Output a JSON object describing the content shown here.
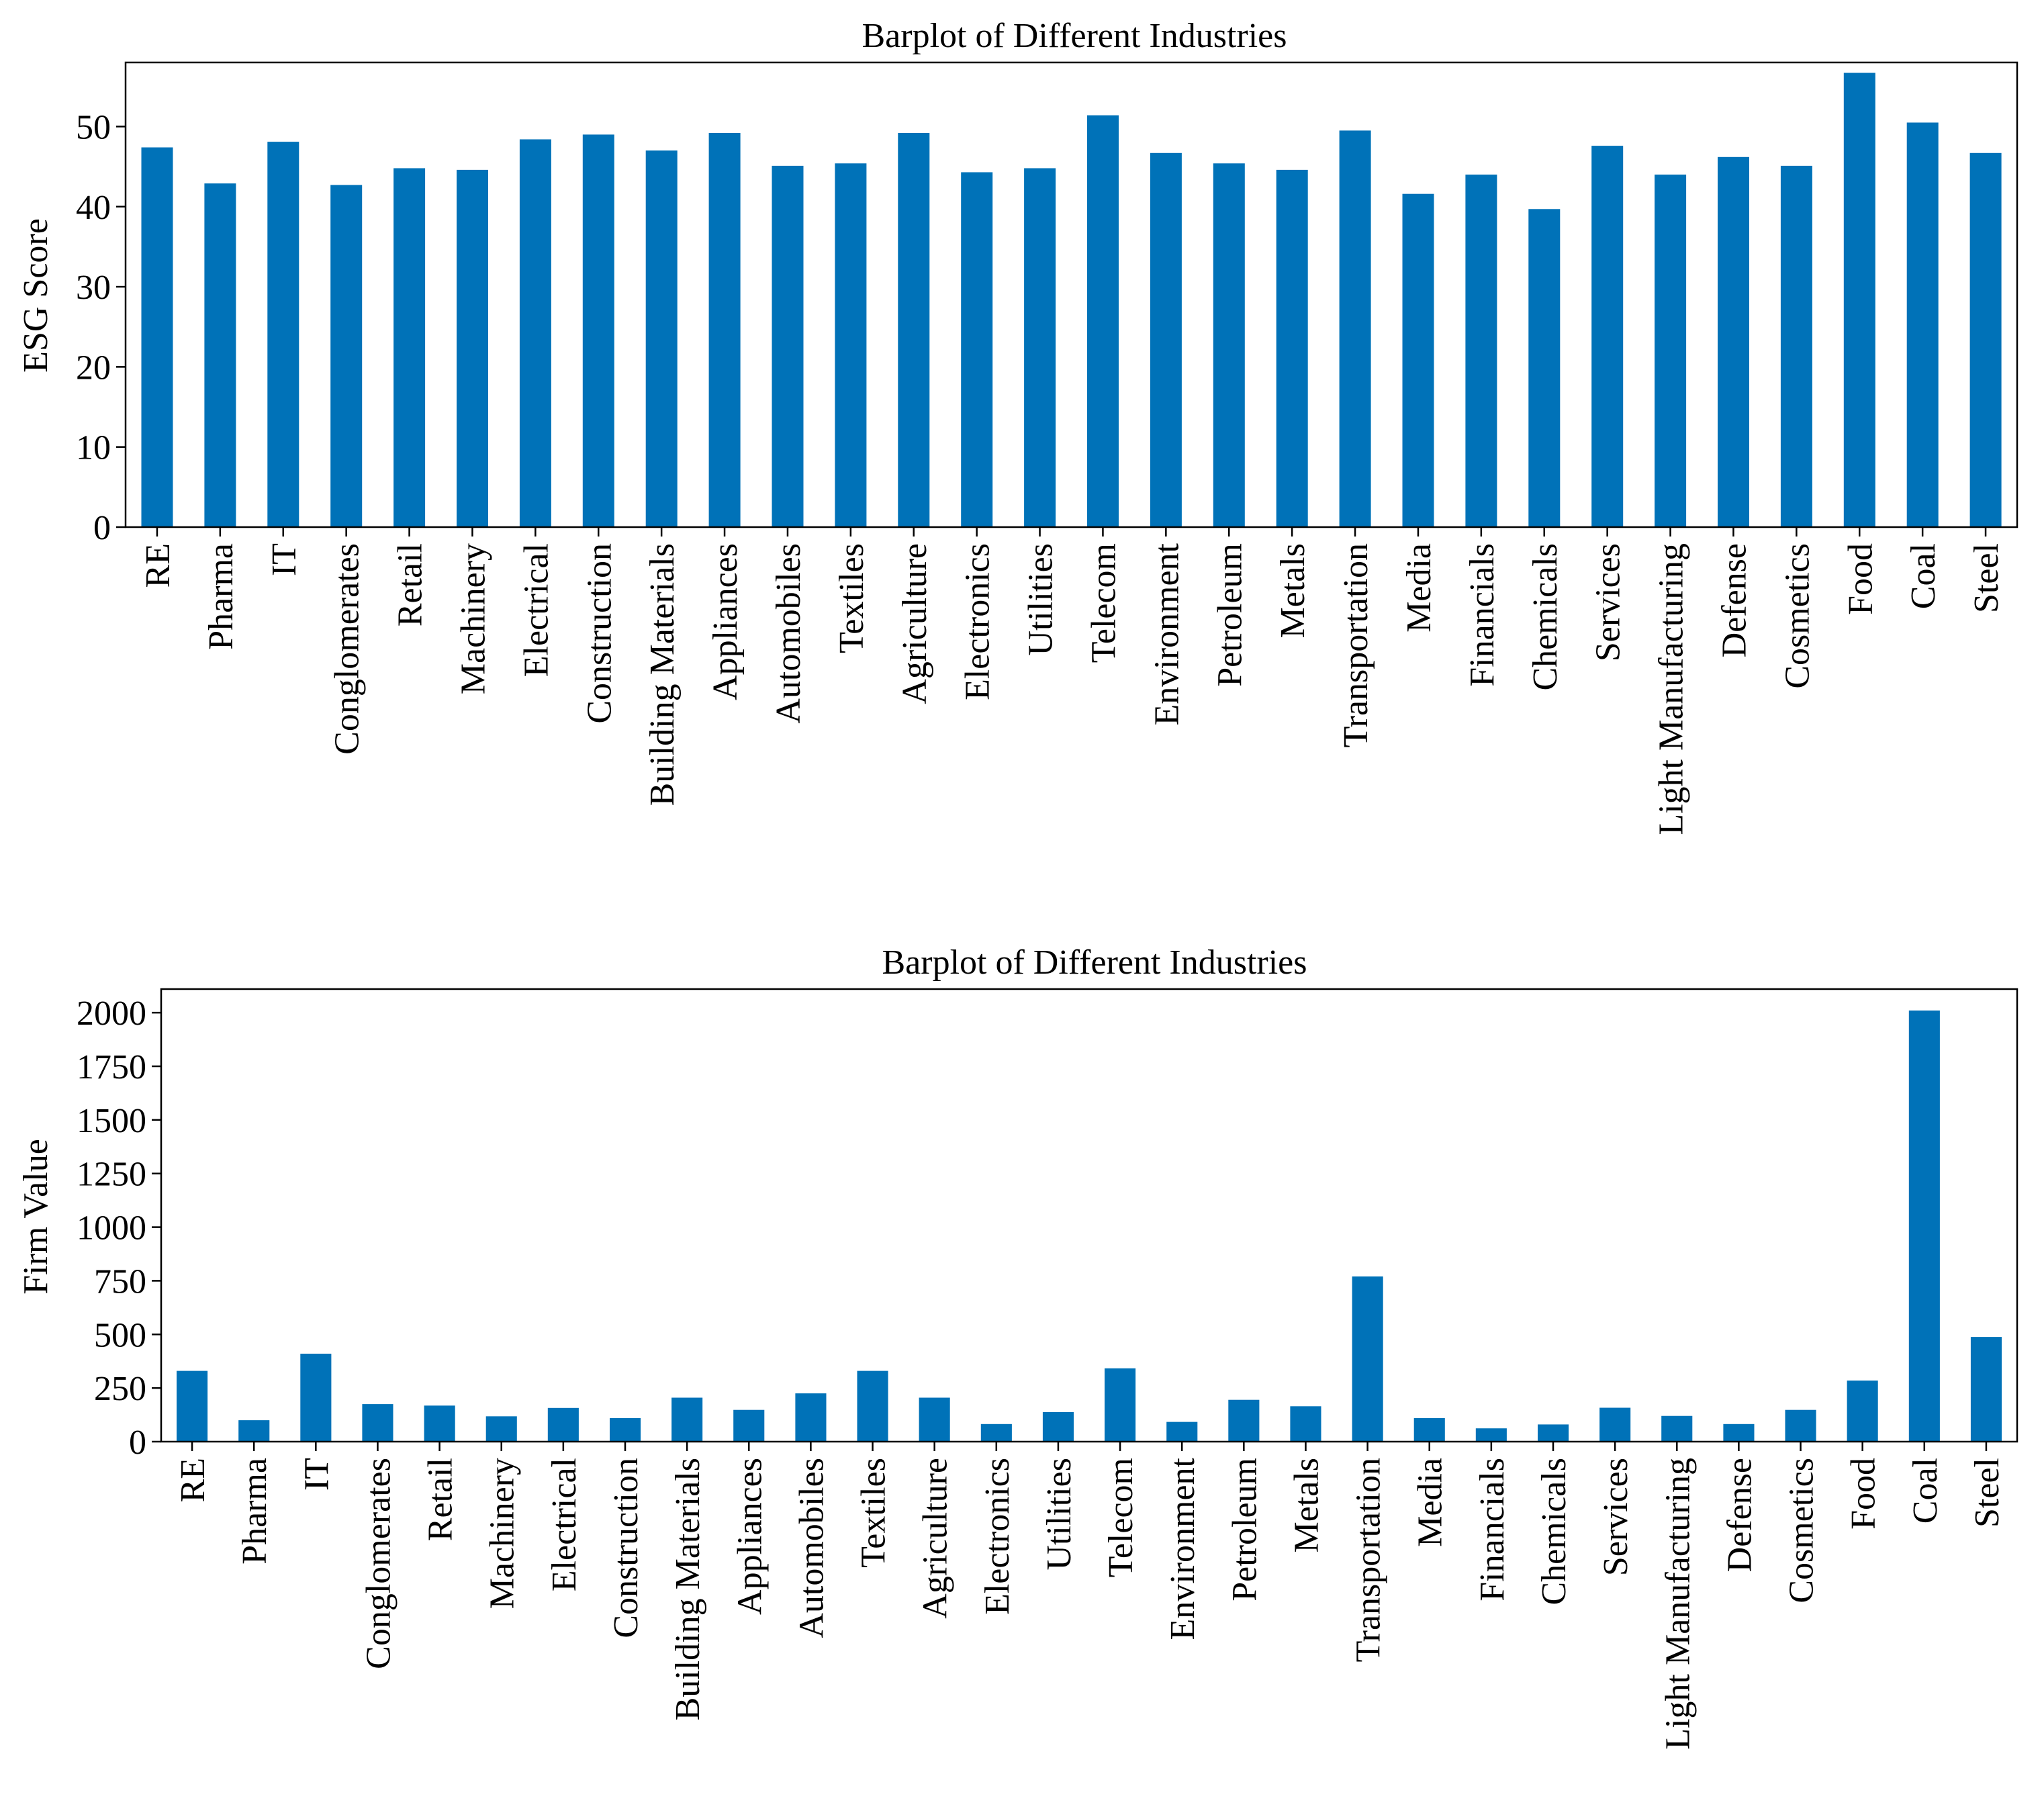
{
  "colors": {
    "bar": "#0072b8",
    "axis": "#000000",
    "background": "#ffffff"
  },
  "chart_data": [
    {
      "type": "bar",
      "title": "Barplot of Different Industries",
      "xlabel": "",
      "ylabel": "ESG Score",
      "ylim": [
        0,
        58
      ],
      "yticks": [
        0,
        10,
        20,
        30,
        40,
        50
      ],
      "legend": "none",
      "grid": false,
      "categories": [
        "RE",
        "Pharma",
        "IT",
        "Conglomerates",
        "Retail",
        "Machinery",
        "Electrical",
        "Construction",
        "Building Materials",
        "Appliances",
        "Automobiles",
        "Textiles",
        "Agriculture",
        "Electronics",
        "Utilities",
        "Telecom",
        "Environment",
        "Petroleum",
        "Metals",
        "Transportation",
        "Media",
        "Financials",
        "Chemicals",
        "Services",
        "Light Manufacturing",
        "Defense",
        "Cosmetics",
        "Food",
        "Coal",
        "Steel"
      ],
      "values": [
        47.4,
        42.9,
        48.1,
        42.7,
        44.8,
        44.6,
        48.4,
        49.0,
        47.0,
        49.2,
        45.1,
        45.4,
        49.2,
        44.3,
        44.8,
        51.4,
        46.7,
        45.4,
        44.6,
        49.5,
        41.6,
        44.0,
        39.7,
        47.6,
        44.0,
        46.2,
        45.1,
        56.7,
        50.5,
        46.7
      ]
    },
    {
      "type": "bar",
      "title": "Barplot of Different Industries",
      "xlabel": "",
      "ylabel": "Firm Value",
      "ylim": [
        0,
        2110
      ],
      "yticks": [
        0,
        250,
        500,
        750,
        1000,
        1250,
        1500,
        1750,
        2000
      ],
      "legend": "none",
      "grid": false,
      "categories": [
        "RE",
        "Pharma",
        "IT",
        "Conglomerates",
        "Retail",
        "Machinery",
        "Electrical",
        "Construction",
        "Building Materials",
        "Appliances",
        "Automobiles",
        "Textiles",
        "Agriculture",
        "Electronics",
        "Utilities",
        "Telecom",
        "Environment",
        "Petroleum",
        "Metals",
        "Transportation",
        "Media",
        "Financials",
        "Chemicals",
        "Services",
        "Light Manufacturing",
        "Defense",
        "Cosmetics",
        "Food",
        "Coal",
        "Steel"
      ],
      "values": [
        330,
        100,
        410,
        175,
        168,
        118,
        157,
        110,
        205,
        148,
        225,
        330,
        205,
        82,
        138,
        342,
        92,
        195,
        165,
        770,
        110,
        62,
        80,
        158,
        120,
        82,
        148,
        285,
        2010,
        488
      ]
    }
  ]
}
